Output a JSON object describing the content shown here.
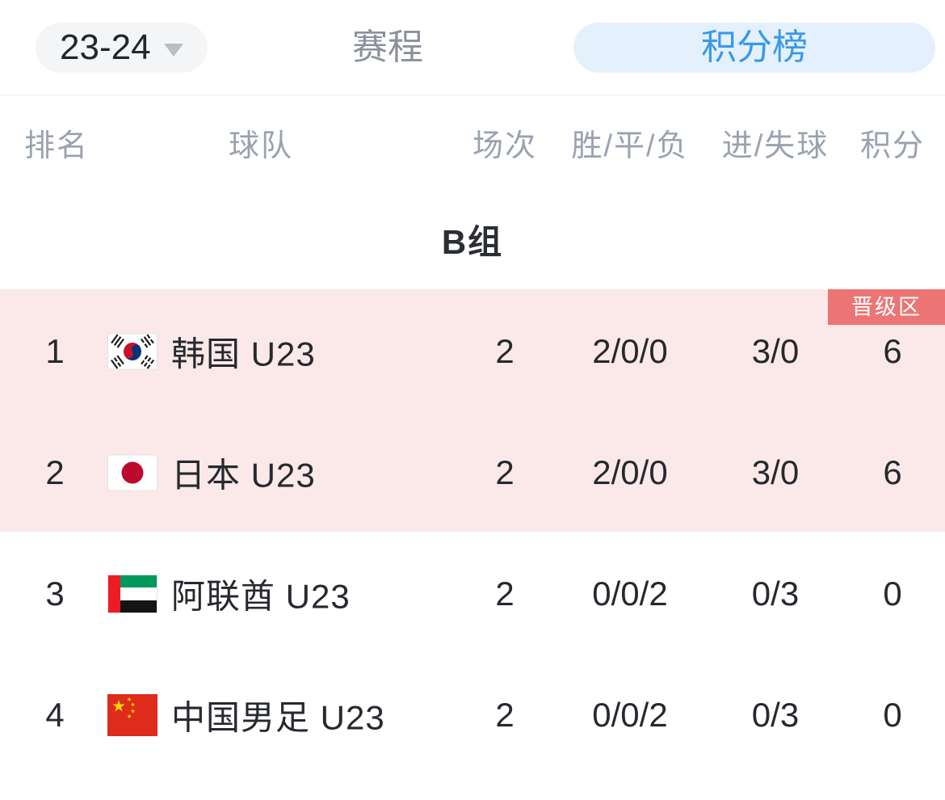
{
  "header": {
    "season_label": "23-24",
    "tabs": [
      {
        "label": "赛程",
        "active": false
      },
      {
        "label": "积分榜",
        "active": true
      }
    ]
  },
  "table": {
    "columns": [
      "排名",
      "球队",
      "场次",
      "胜/平/负",
      "进/失球",
      "积分"
    ],
    "group": {
      "title": "B组",
      "promotion_badge": "晋级区",
      "rows": [
        {
          "rank": "1",
          "team": "韩国 U23",
          "flag": "south-korea",
          "played": "2",
          "wdl": "2/0/0",
          "goals": "3/0",
          "points": "6",
          "promotion_zone": true
        },
        {
          "rank": "2",
          "team": "日本 U23",
          "flag": "japan",
          "played": "2",
          "wdl": "2/0/0",
          "goals": "3/0",
          "points": "6",
          "promotion_zone": true
        },
        {
          "rank": "3",
          "team": "阿联酋 U23",
          "flag": "uae",
          "played": "2",
          "wdl": "0/0/2",
          "goals": "0/3",
          "points": "0",
          "promotion_zone": false
        },
        {
          "rank": "4",
          "team": "中国男足 U23",
          "flag": "china",
          "played": "2",
          "wdl": "0/0/2",
          "goals": "0/3",
          "points": "0",
          "promotion_zone": false
        }
      ]
    }
  },
  "colors": {
    "accent-blue": "#3b99e8",
    "accent-blue-bg": "#e4f1fd",
    "promotion-pink": "#fbe9e9",
    "promotion-badge": "#ed7474",
    "pill-gray-bg": "#f4f5f6"
  }
}
